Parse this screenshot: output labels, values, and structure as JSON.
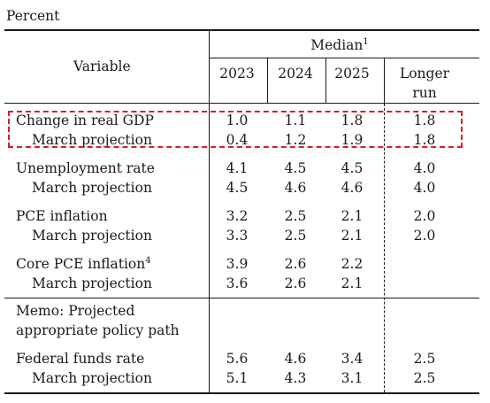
{
  "caption": "Percent",
  "header": {
    "variable": "Variable",
    "median": "Median",
    "median_sup": "1",
    "years": [
      "2023",
      "2024",
      "2025"
    ],
    "longer_run_line1": "Longer",
    "longer_run_line2": "run"
  },
  "rows": [
    {
      "label": "Change in real GDP",
      "indent": false,
      "values": [
        "1.0",
        "1.1",
        "1.8"
      ],
      "longer": "1.8"
    },
    {
      "label": "March projection",
      "indent": true,
      "values": [
        "0.4",
        "1.2",
        "1.9"
      ],
      "longer": "1.8"
    },
    {
      "label": "Unemployment rate",
      "indent": false,
      "values": [
        "4.1",
        "4.5",
        "4.5"
      ],
      "longer": "4.0"
    },
    {
      "label": "March projection",
      "indent": true,
      "values": [
        "4.5",
        "4.6",
        "4.6"
      ],
      "longer": "4.0"
    },
    {
      "label": "PCE inflation",
      "indent": false,
      "values": [
        "3.2",
        "2.5",
        "2.1"
      ],
      "longer": "2.0"
    },
    {
      "label": "March projection",
      "indent": true,
      "values": [
        "3.3",
        "2.5",
        "2.1"
      ],
      "longer": "2.0"
    },
    {
      "label": "Core PCE inflation",
      "sup": "4",
      "indent": false,
      "values": [
        "3.9",
        "2.6",
        "2.2"
      ],
      "longer": ""
    },
    {
      "label": "March projection",
      "indent": true,
      "values": [
        "3.6",
        "2.6",
        "2.1"
      ],
      "longer": ""
    },
    {
      "label": "Memo: Projected",
      "indent": false,
      "values": [
        "",
        "",
        ""
      ],
      "longer": ""
    },
    {
      "label": "appropriate policy path",
      "indent": false,
      "values": [
        "",
        "",
        ""
      ],
      "longer": ""
    },
    {
      "label": "Federal funds rate",
      "indent": false,
      "values": [
        "5.6",
        "4.6",
        "3.4"
      ],
      "longer": "2.5"
    },
    {
      "label": "March projection",
      "indent": true,
      "values": [
        "5.1",
        "4.3",
        "3.1"
      ],
      "longer": "2.5"
    }
  ],
  "highlight_color": "#d81f26"
}
